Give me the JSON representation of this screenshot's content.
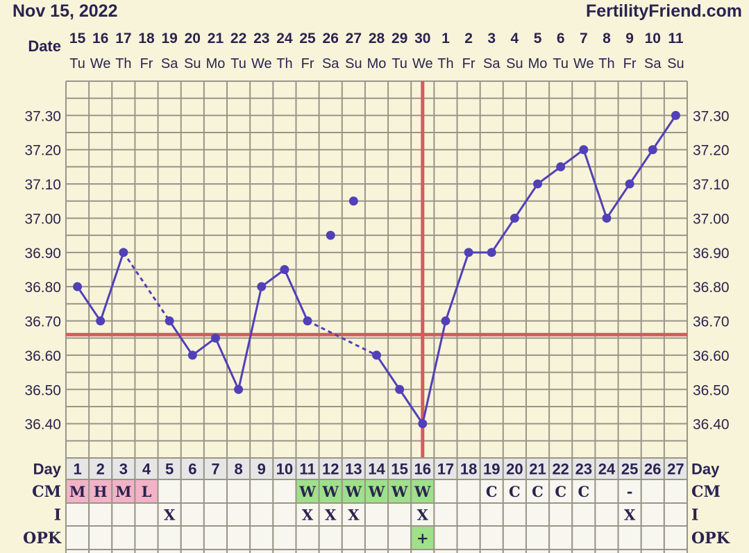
{
  "header": {
    "date": "Nov 15, 2022",
    "brand": "FertilityFriend.com"
  },
  "labels": {
    "date": "Date",
    "day": "Day",
    "cm": "CM",
    "i": "I",
    "opk": "OPK"
  },
  "colors": {
    "line": "#5140b8",
    "coverline": "#d65a5a",
    "grid": "#999588",
    "background": "#f8f4da",
    "pink": "#f2b3c6",
    "green": "#9fe08a",
    "rowbg": "#f7f7ef",
    "dayrow": "#e6e6e6"
  },
  "chart_data": {
    "type": "line",
    "ylim": [
      36.3,
      37.4
    ],
    "yticks": [
      "36.40",
      "36.50",
      "36.60",
      "36.70",
      "36.80",
      "36.90",
      "37.00",
      "37.10",
      "37.20",
      "37.30"
    ],
    "dates": [
      "15",
      "16",
      "17",
      "18",
      "19",
      "20",
      "21",
      "22",
      "23",
      "24",
      "25",
      "26",
      "27",
      "28",
      "29",
      "30",
      "1",
      "2",
      "3",
      "4",
      "5",
      "6",
      "7",
      "8",
      "9",
      "10",
      "11"
    ],
    "weekdays": [
      "Tu",
      "We",
      "Th",
      "Fr",
      "Sa",
      "Su",
      "Mo",
      "Tu",
      "We",
      "Th",
      "Fr",
      "Sa",
      "Su",
      "Mo",
      "Tu",
      "We",
      "Th",
      "Fr",
      "Sa",
      "Su",
      "Mo",
      "Tu",
      "We",
      "Th",
      "Fr",
      "Sa",
      "Su"
    ],
    "days": [
      "1",
      "2",
      "3",
      "4",
      "5",
      "6",
      "7",
      "8",
      "9",
      "10",
      "11",
      "12",
      "13",
      "14",
      "15",
      "16",
      "17",
      "18",
      "19",
      "20",
      "21",
      "22",
      "23",
      "24",
      "25",
      "26",
      "27"
    ],
    "temps": [
      36.8,
      36.7,
      36.9,
      null,
      36.7,
      36.6,
      36.65,
      36.5,
      36.8,
      36.85,
      36.7,
      36.95,
      37.05,
      36.6,
      36.5,
      36.4,
      36.7,
      36.9,
      36.9,
      37.0,
      37.1,
      37.15,
      37.2,
      37.0,
      37.1,
      37.2,
      37.3
    ],
    "discarded_days": [
      12,
      13
    ],
    "coverline": 36.66,
    "ovulation_day": 16,
    "cm": [
      "M",
      "H",
      "M",
      "L",
      "",
      "",
      "",
      "",
      "",
      "",
      "W",
      "W",
      "W",
      "W",
      "W",
      "W",
      "",
      "",
      "C",
      "C",
      "C",
      "C",
      "C",
      "",
      "-",
      "",
      ""
    ],
    "cm_colors": {
      "M": "pink",
      "H": "pink",
      "L": "pink",
      "W": "green"
    },
    "intercourse": [
      "",
      "",
      "",
      "",
      "X",
      "",
      "",
      "",
      "",
      "",
      "X",
      "X",
      "X",
      "",
      "",
      "X",
      "",
      "",
      "",
      "",
      "",
      "",
      "",
      "",
      "X",
      "",
      ""
    ],
    "opk": [
      "",
      "",
      "",
      "",
      "",
      "",
      "",
      "",
      "",
      "",
      "",
      "",
      "",
      "",
      "",
      "+",
      "",
      "",
      "",
      "",
      "",
      "",
      "",
      "",
      "",
      "",
      ""
    ]
  }
}
